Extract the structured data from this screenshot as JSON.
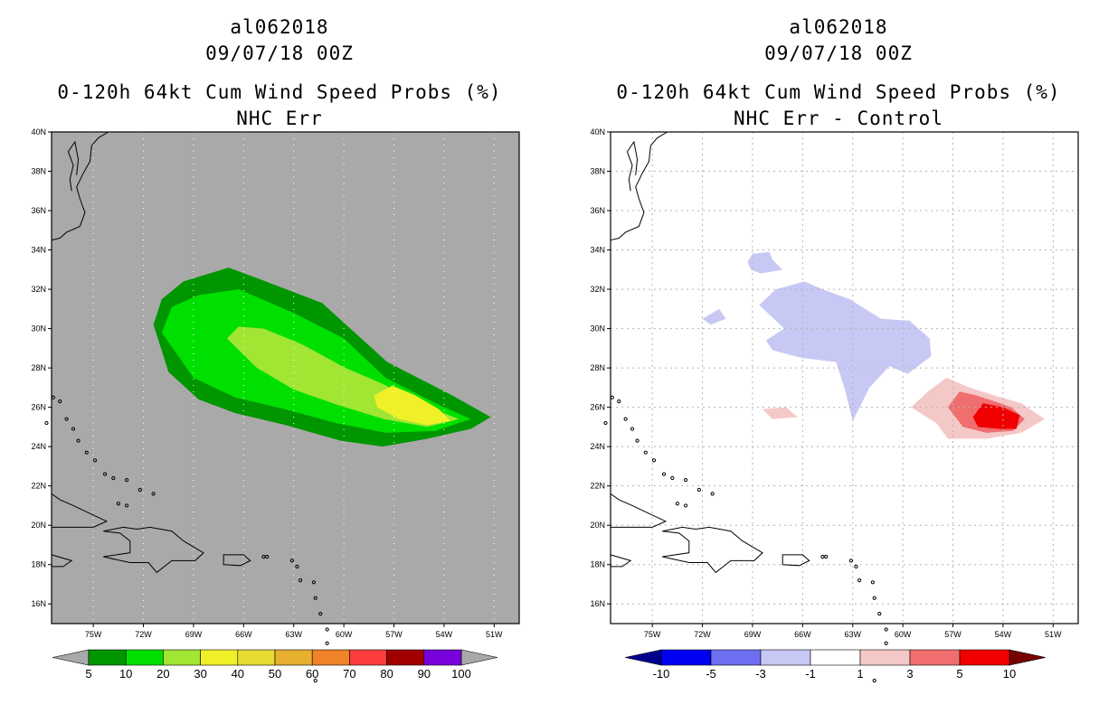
{
  "chart_data": [
    {
      "type": "map-contour",
      "storm_id": "al062018",
      "date": "09/07/18 00Z",
      "title": "0-120h 64kt Cum Wind Speed Probs (%)",
      "subtitle": "NHC Err",
      "background": "#a9a9a9",
      "lon_labels": [
        "75W",
        "72W",
        "69W",
        "66W",
        "63W",
        "60W",
        "57W",
        "54W",
        "51W"
      ],
      "lat_labels": [
        "16N",
        "18N",
        "20N",
        "22N",
        "24N",
        "26N",
        "28N",
        "30N",
        "32N",
        "34N",
        "36N",
        "38N",
        "40N"
      ],
      "colorbar": {
        "labels": [
          "5",
          "10",
          "20",
          "30",
          "40",
          "50",
          "60",
          "70",
          "80",
          "90",
          "100"
        ],
        "colors": [
          "#009600",
          "#00e000",
          "#a0e632",
          "#f0f028",
          "#e6dc32",
          "#e6af2d",
          "#f08228",
          "#fa3c3c",
          "#a00000",
          "#7800dc"
        ],
        "below_color": "#a9a9a9",
        "above_color": "#a9a9a9"
      },
      "contours": [
        {
          "level": "5-10",
          "color": "#009600"
        },
        {
          "level": "10-20",
          "color": "#00e000"
        },
        {
          "level": "20-30",
          "color": "#a0e632"
        },
        {
          "level": "30-40",
          "color": "#f0f028"
        }
      ]
    },
    {
      "type": "map-contour",
      "storm_id": "al062018",
      "date": "09/07/18 00Z",
      "title": "0-120h 64kt Cum Wind Speed Probs (%)",
      "subtitle": "NHC Err - Control",
      "background": "#ffffff",
      "lon_labels": [
        "75W",
        "72W",
        "69W",
        "66W",
        "63W",
        "60W",
        "57W",
        "54W",
        "51W"
      ],
      "lat_labels": [
        "16N",
        "18N",
        "20N",
        "22N",
        "24N",
        "26N",
        "28N",
        "30N",
        "32N",
        "34N",
        "36N",
        "38N",
        "40N"
      ],
      "colorbar": {
        "labels": [
          "-10",
          "-5",
          "-3",
          "-1",
          "1",
          "3",
          "5",
          "10"
        ],
        "colors": [
          "#0000f0",
          "#6e6ef0",
          "#c8c8f5",
          "#ffffff",
          "#f5c8c8",
          "#f06e6e",
          "#f00000"
        ],
        "below_color": "#00008c",
        "above_color": "#780000"
      },
      "contours": [
        {
          "level": "-3 to -1",
          "color": "#c8c8f5"
        },
        {
          "level": "1 to 3",
          "color": "#f5c8c8"
        },
        {
          "level": "3 to 5",
          "color": "#f06e6e"
        },
        {
          "level": "5 to 10",
          "color": "#f00000"
        }
      ]
    }
  ]
}
